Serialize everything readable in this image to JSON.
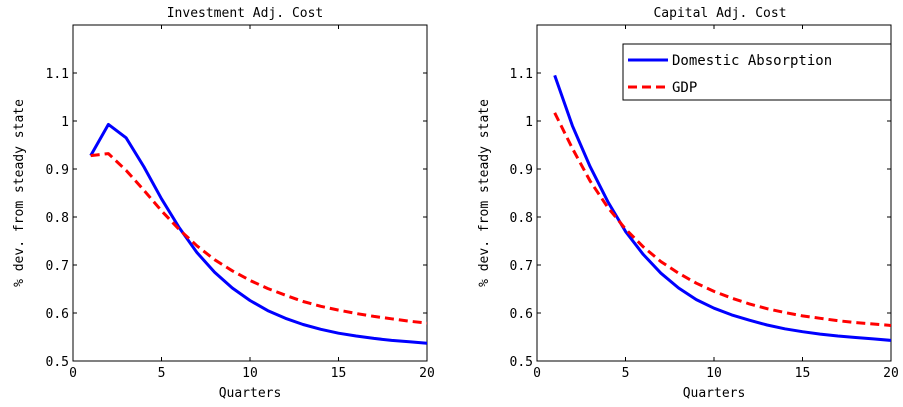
{
  "chart_data": [
    {
      "type": "line",
      "title": "Investment Adj. Cost",
      "xlabel": "Quarters",
      "ylabel": "% dev. from steady state",
      "xlim": [
        0,
        20
      ],
      "ylim": [
        0.5,
        1.2
      ],
      "xticks": [
        "0",
        "5",
        "10",
        "15",
        "20"
      ],
      "yticks": [
        "0.5",
        "0.6",
        "0.7",
        "0.8",
        "0.9",
        "1",
        "1.1"
      ],
      "grid": false,
      "legend": false,
      "x": [
        1,
        2,
        3,
        4,
        5,
        6,
        7,
        8,
        9,
        10,
        11,
        12,
        13,
        14,
        15,
        16,
        17,
        18,
        19,
        20
      ],
      "series": [
        {
          "name": "Domestic Absorption",
          "color": "#0000ff",
          "style": "solid",
          "values": [
            0.928,
            0.993,
            0.965,
            0.905,
            0.838,
            0.778,
            0.726,
            0.685,
            0.652,
            0.626,
            0.605,
            0.589,
            0.576,
            0.566,
            0.558,
            0.552,
            0.547,
            0.543,
            0.54,
            0.537
          ]
        },
        {
          "name": "GDP",
          "color": "#ff0000",
          "style": "dashed",
          "values": [
            0.928,
            0.932,
            0.897,
            0.856,
            0.813,
            0.774,
            0.74,
            0.711,
            0.688,
            0.668,
            0.651,
            0.637,
            0.624,
            0.614,
            0.606,
            0.599,
            0.593,
            0.588,
            0.583,
            0.579
          ]
        }
      ]
    },
    {
      "type": "line",
      "title": "Capital Adj. Cost",
      "xlabel": "Quarters",
      "ylabel": "% dev. from steady state",
      "xlim": [
        0,
        20
      ],
      "ylim": [
        0.5,
        1.2
      ],
      "xticks": [
        "0",
        "5",
        "10",
        "15",
        "20"
      ],
      "yticks": [
        "0.5",
        "0.6",
        "0.7",
        "0.8",
        "0.9",
        "1",
        "1.1"
      ],
      "grid": false,
      "legend": "top-right",
      "x": [
        1,
        2,
        3,
        4,
        5,
        6,
        7,
        8,
        9,
        10,
        11,
        12,
        13,
        14,
        15,
        16,
        17,
        18,
        19,
        20
      ],
      "series": [
        {
          "name": "Domestic Absorption",
          "color": "#0000ff",
          "style": "solid",
          "values": [
            1.095,
            0.99,
            0.905,
            0.832,
            0.77,
            0.722,
            0.683,
            0.652,
            0.628,
            0.61,
            0.596,
            0.585,
            0.575,
            0.567,
            0.561,
            0.556,
            0.552,
            0.549,
            0.546,
            0.543
          ]
        },
        {
          "name": "GDP",
          "color": "#ff0000",
          "style": "dashed",
          "values": [
            1.017,
            0.943,
            0.875,
            0.82,
            0.775,
            0.738,
            0.707,
            0.683,
            0.662,
            0.645,
            0.631,
            0.619,
            0.609,
            0.601,
            0.594,
            0.589,
            0.584,
            0.58,
            0.577,
            0.574
          ]
        }
      ]
    }
  ]
}
